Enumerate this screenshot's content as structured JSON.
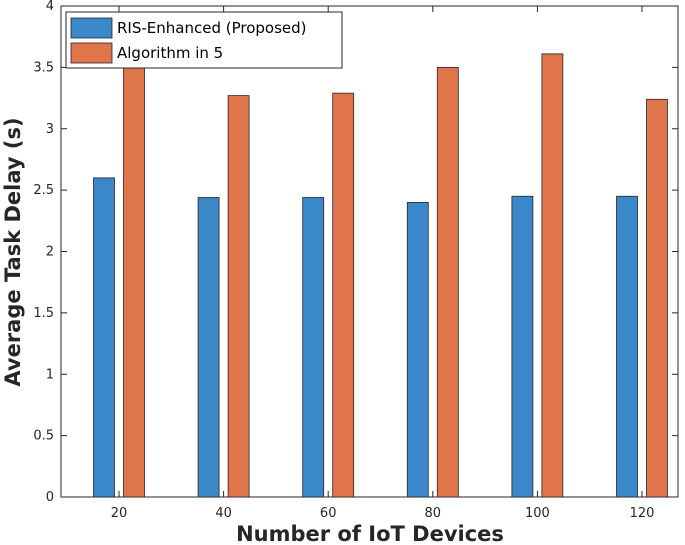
{
  "chart_data": {
    "type": "bar",
    "categories": [
      "20",
      "40",
      "60",
      "80",
      "100",
      "120"
    ],
    "series": [
      {
        "name": "RIS-Enhanced (Proposed)",
        "color": "#3a88c9",
        "values": [
          2.6,
          2.44,
          2.44,
          2.4,
          2.45,
          2.45
        ]
      },
      {
        "name": "Algorithm in 5",
        "color": "#e0744a",
        "values": [
          3.56,
          3.27,
          3.29,
          3.5,
          3.61,
          3.24
        ]
      }
    ],
    "xlabel": "Number of IoT Devices",
    "ylabel": "Average Task Delay (s)",
    "ylim": [
      0,
      4
    ],
    "yticks": [
      "0",
      "0.5",
      "1",
      "1.5",
      "2",
      "2.5",
      "3",
      "3.5",
      "4"
    ],
    "grid": false,
    "legend_position": "top-left"
  }
}
